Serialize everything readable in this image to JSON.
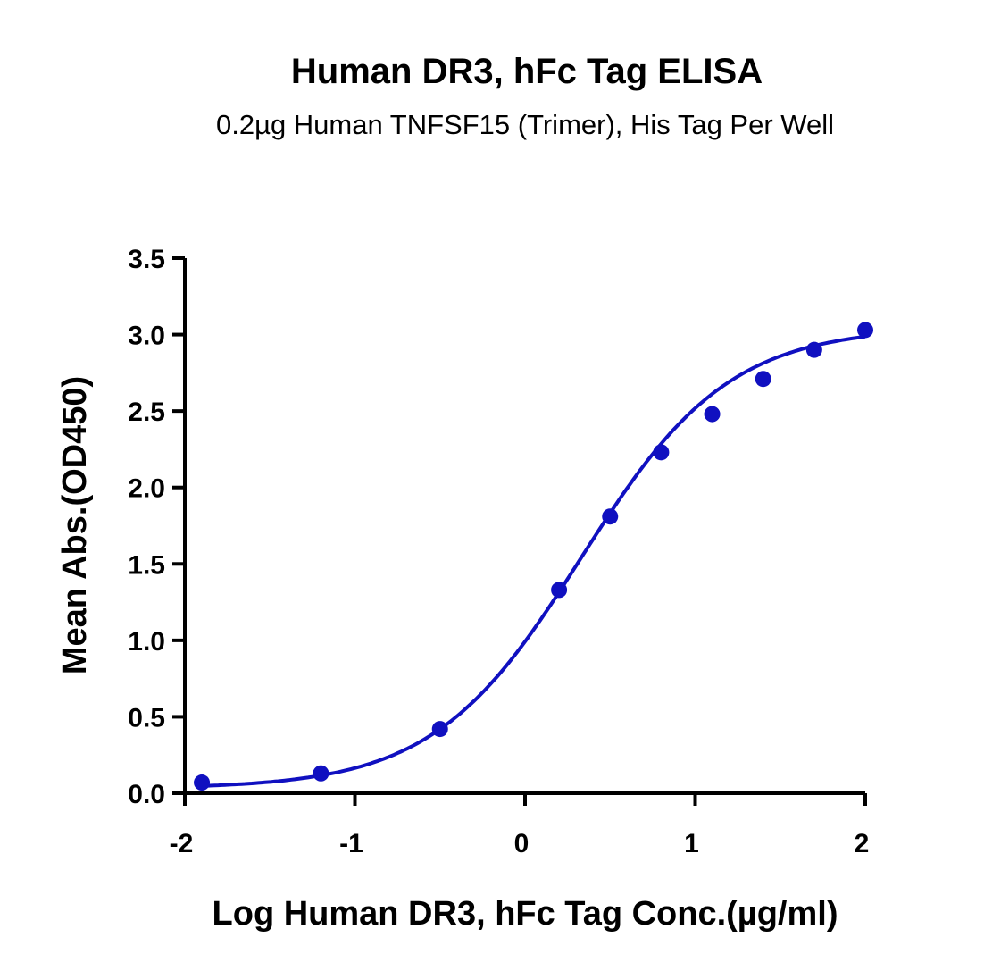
{
  "chart_data": {
    "type": "scatter",
    "title": "Human DR3, hFc Tag ELISA",
    "subtitle": "0.2µg Human TNFSF15 (Trimer), His Tag Per Well",
    "xlabel": "Log Human DR3, hFc Tag Conc.(µg/ml)",
    "ylabel": "Mean Abs.(OD450)",
    "xlim": [
      -2,
      2
    ],
    "ylim": [
      0,
      3.5
    ],
    "xticks": [
      "-2",
      "-1",
      "0",
      "1",
      "2"
    ],
    "xtick_values": [
      -2,
      -1,
      0,
      1,
      2
    ],
    "yticks": [
      "0.0",
      "0.5",
      "1.0",
      "1.5",
      "2.0",
      "2.5",
      "3.0",
      "3.5"
    ],
    "ytick_values": [
      0,
      0.5,
      1,
      1.5,
      2,
      2.5,
      3,
      3.5
    ],
    "grid": false,
    "color": "#1010C0",
    "series": [
      {
        "name": "Mean Abs.",
        "x": [
          -1.9,
          -1.2,
          -0.5,
          0.2,
          0.5,
          0.8,
          1.1,
          1.4,
          1.7,
          2.0
        ],
        "y": [
          0.07,
          0.13,
          0.42,
          1.33,
          1.81,
          2.23,
          2.48,
          2.71,
          2.9,
          3.03
        ]
      }
    ],
    "fit": {
      "model": "4PL",
      "bottom": 0.03,
      "top": 3.05,
      "logEC50": 0.33,
      "hill": 1.0
    }
  }
}
